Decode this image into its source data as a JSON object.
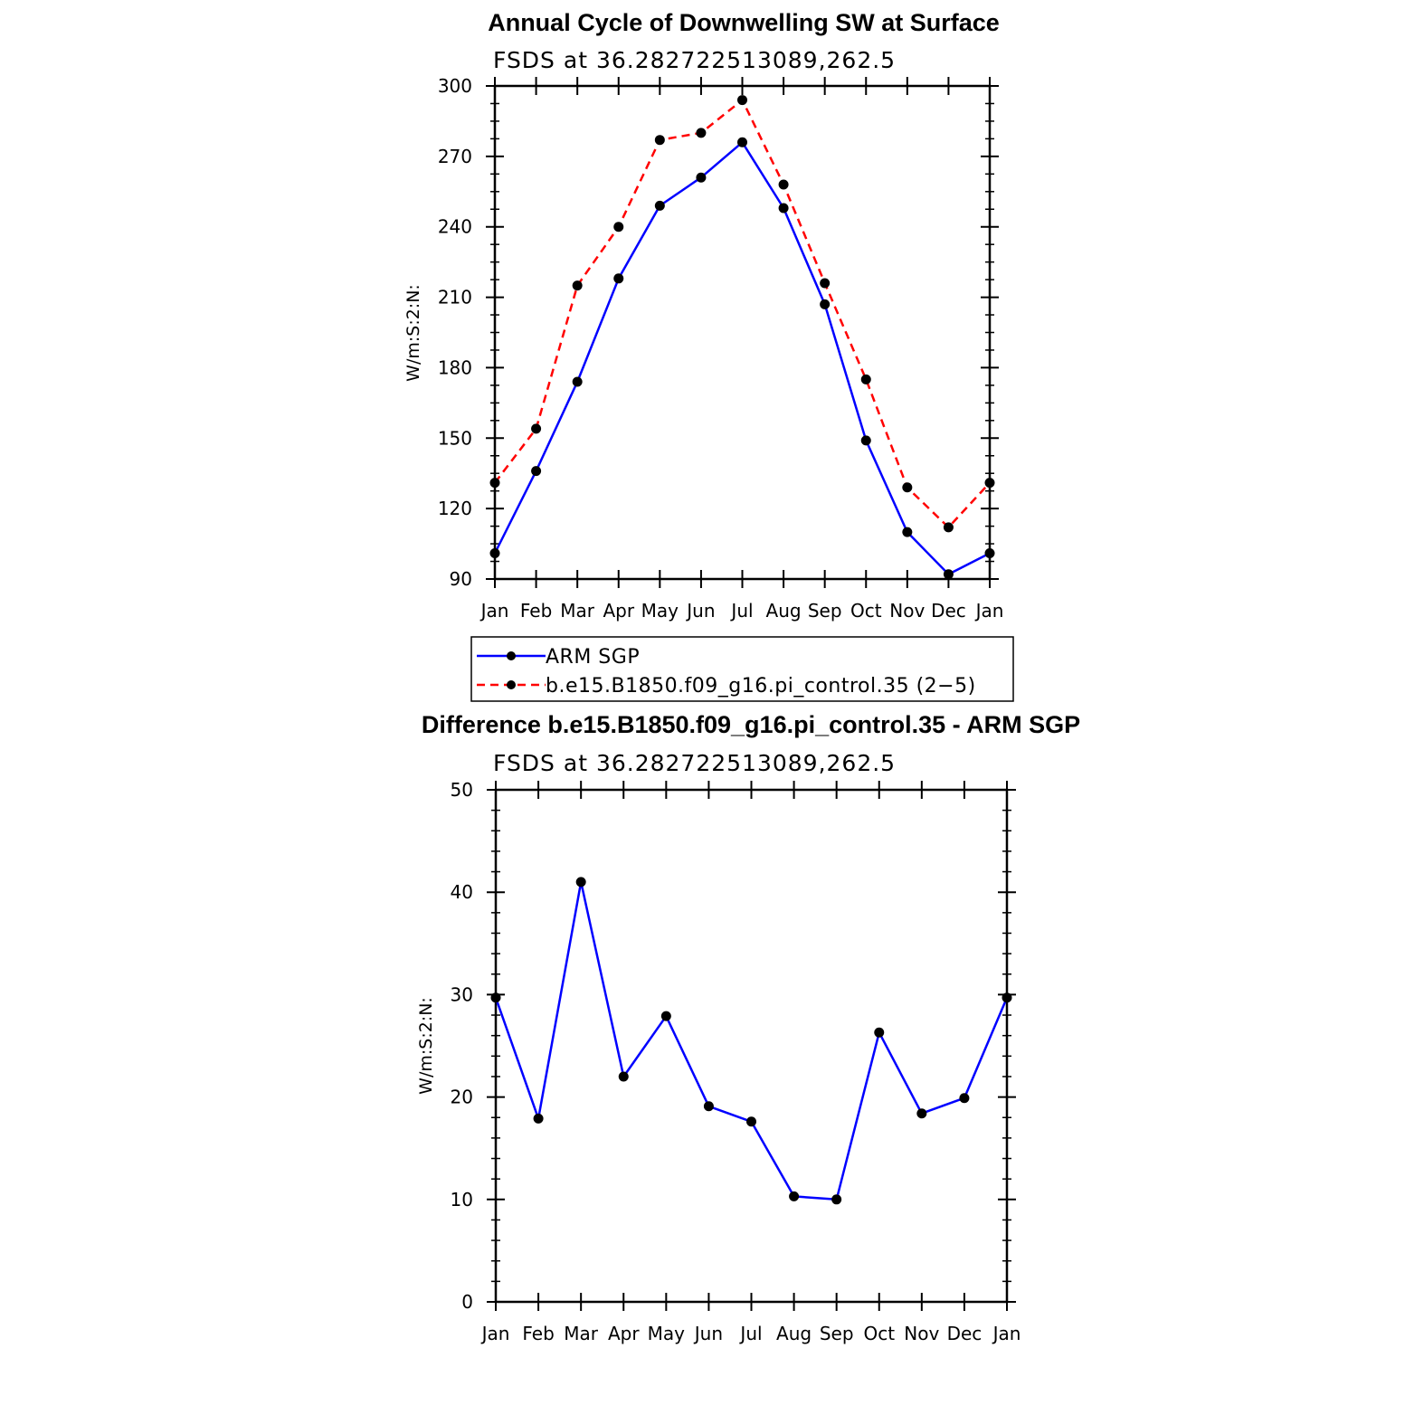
{
  "chart_data": [
    {
      "type": "line",
      "title": "Annual Cycle of Downwelling SW at Surface",
      "subtitle": "FSDS at 36.282722513089,262.5",
      "ylabel": "W/m:S:2:N:",
      "xlabel": "",
      "categories": [
        "Jan",
        "Feb",
        "Mar",
        "Apr",
        "May",
        "Jun",
        "Jul",
        "Aug",
        "Sep",
        "Oct",
        "Nov",
        "Dec",
        "Jan"
      ],
      "ylim": [
        90,
        300
      ],
      "yticks": [
        90,
        120,
        150,
        180,
        210,
        240,
        270,
        300
      ],
      "legend_position": "bottom",
      "series": [
        {
          "name": "ARM SGP",
          "color": "#0000ff",
          "dash": "solid",
          "marker": "dot",
          "values": [
            101,
            136,
            174,
            218,
            249,
            261,
            276,
            248,
            207,
            149,
            110,
            92,
            101
          ]
        },
        {
          "name": "b.e15.B1850.f09_g16.pi_control.35 (2−5)",
          "color": "#ff0000",
          "dash": "dashed",
          "marker": "dot",
          "values": [
            131,
            154,
            215,
            240,
            277,
            280,
            294,
            258,
            216,
            175,
            129,
            112,
            131
          ]
        }
      ]
    },
    {
      "type": "line",
      "title": "Difference b.e15.B1850.f09_g16.pi_control.35 - ARM SGP",
      "subtitle": "FSDS at 36.282722513089,262.5",
      "ylabel": "W/m:S:2:N:",
      "xlabel": "",
      "categories": [
        "Jan",
        "Feb",
        "Mar",
        "Apr",
        "May",
        "Jun",
        "Jul",
        "Aug",
        "Sep",
        "Oct",
        "Nov",
        "Dec",
        "Jan"
      ],
      "ylim": [
        0,
        50
      ],
      "yticks": [
        0,
        10,
        20,
        30,
        40,
        50
      ],
      "series": [
        {
          "color": "#0000ff",
          "dash": "solid",
          "marker": "dot",
          "values": [
            29.7,
            17.9,
            41.0,
            22.0,
            27.9,
            19.1,
            17.6,
            10.3,
            10.0,
            26.3,
            18.4,
            19.9,
            29.7
          ]
        }
      ]
    }
  ]
}
